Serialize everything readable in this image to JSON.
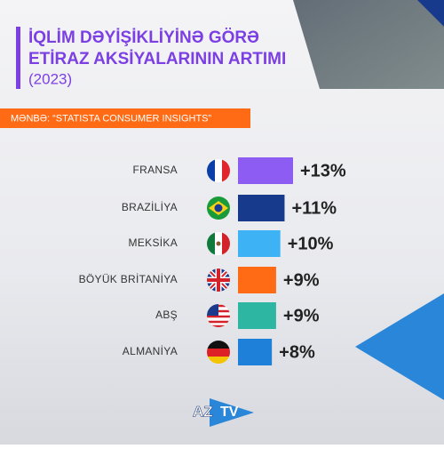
{
  "chart_data": {
    "type": "bar",
    "orientation": "horizontal",
    "title": [
      "İQLİM DƏYİŞİKLİYİNƏ GÖRƏ",
      "ETİRAZ AKSİYALARININ ARTIMI"
    ],
    "subtitle": "(2023)",
    "source": "MƏNBƏ: “STATISTA CONSUMER INSIGHTS”",
    "categories": [
      "FRANSA",
      "BRAZİLİYA",
      "MEKSİKA",
      "BÖYÜK BRİTANİYA",
      "ABŞ",
      "ALMANİYA"
    ],
    "values": [
      13,
      11,
      10,
      9,
      9,
      8
    ],
    "value_labels": [
      "+13%",
      "+11%",
      "+10%",
      "+9%",
      "+9%",
      "+8%"
    ],
    "colors": [
      "#8d5cf2",
      "#173a8c",
      "#3db3f5",
      "#ff6a14",
      "#2db7a2",
      "#1f80d9"
    ],
    "logo": [
      "AZ",
      "TV"
    ]
  }
}
